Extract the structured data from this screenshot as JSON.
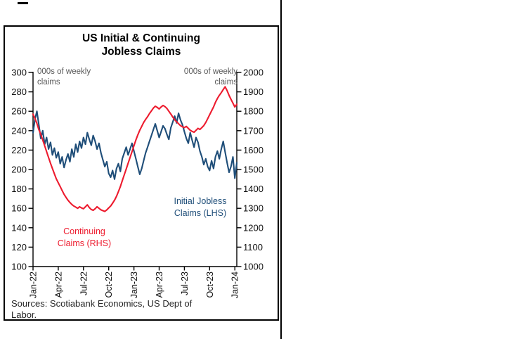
{
  "chart": {
    "title_line1": "US Initial & Continuing",
    "title_line2": "Jobless Claims",
    "left_axis_note_line1": "000s of weekly",
    "left_axis_note_line2": "claims",
    "right_axis_note_line1": "000s of weekly",
    "right_axis_note_line2": "claims",
    "series_label_initial_line1": "Initial Jobless",
    "series_label_initial_line2": "Claims (LHS)",
    "series_label_continuing_line1": "Continuing",
    "series_label_continuing_line2": "Claims (RHS)",
    "source_line1": "Sources: Scotiabank Economics, US Dept of",
    "source_line2": "Labor."
  },
  "chart_data": {
    "type": "line",
    "title": "US Initial & Continuing Jobless Claims",
    "frequency": "weekly",
    "n_points": 106,
    "x_tick_labels": [
      "Jan-22",
      "Apr-22",
      "Jul-22",
      "Oct-22",
      "Jan-23",
      "Apr-23",
      "Jul-23",
      "Oct-23",
      "Jan-24"
    ],
    "x_tick_indices": [
      0,
      13,
      26,
      39,
      52,
      65,
      78,
      91,
      104
    ],
    "left_axis": {
      "min": 100,
      "max": 300,
      "step": 20,
      "label": "000s of weekly claims",
      "ticks": [
        300,
        280,
        260,
        240,
        220,
        200,
        180,
        160,
        140,
        120,
        100
      ]
    },
    "right_axis": {
      "min": 1000,
      "max": 2000,
      "step": 100,
      "label": "000s of weekly claims",
      "ticks": [
        2000,
        1900,
        1800,
        1700,
        1600,
        1500,
        1400,
        1300,
        1200,
        1100,
        1000
      ]
    },
    "grid": false,
    "legend_position": "inside-annotations",
    "series": [
      {
        "name": "Initial Jobless Claims (LHS)",
        "axis": "left",
        "color": "#1f4e79",
        "values": [
          238,
          252,
          260,
          246,
          232,
          240,
          226,
          233,
          221,
          228,
          215,
          222,
          212,
          218,
          206,
          213,
          202,
          210,
          216,
          208,
          221,
          213,
          226,
          218,
          229,
          222,
          233,
          226,
          238,
          231,
          225,
          235,
          229,
          221,
          227,
          217,
          210,
          203,
          208,
          196,
          192,
          199,
          190,
          201,
          206,
          198,
          211,
          217,
          223,
          215,
          221,
          227,
          219,
          211,
          203,
          195,
          201,
          209,
          217,
          223,
          229,
          235,
          241,
          247,
          240,
          233,
          239,
          245,
          242,
          236,
          231,
          243,
          249,
          255,
          248,
          258,
          251,
          246,
          239,
          232,
          227,
          238,
          230,
          223,
          233,
          228,
          219,
          213,
          205,
          211,
          203,
          199,
          209,
          201,
          213,
          219,
          211,
          221,
          229,
          218,
          207,
          197,
          203,
          213,
          191,
          207
        ]
      },
      {
        "name": "Continuing Claims (RHS)",
        "axis": "right",
        "color": "#ed1b2e",
        "values": [
          1785,
          1762,
          1738,
          1705,
          1682,
          1652,
          1622,
          1592,
          1562,
          1532,
          1505,
          1478,
          1452,
          1432,
          1412,
          1392,
          1372,
          1356,
          1342,
          1330,
          1320,
          1312,
          1306,
          1300,
          1308,
          1302,
          1298,
          1308,
          1318,
          1304,
          1294,
          1290,
          1298,
          1308,
          1300,
          1292,
          1288,
          1284,
          1292,
          1302,
          1312,
          1326,
          1342,
          1362,
          1386,
          1412,
          1442,
          1472,
          1502,
          1532,
          1562,
          1592,
          1622,
          1652,
          1678,
          1702,
          1722,
          1742,
          1758,
          1772,
          1788,
          1802,
          1816,
          1826,
          1820,
          1812,
          1822,
          1830,
          1824,
          1814,
          1800,
          1786,
          1770,
          1756,
          1746,
          1736,
          1726,
          1720,
          1716,
          1722,
          1712,
          1702,
          1696,
          1692,
          1702,
          1712,
          1706,
          1716,
          1726,
          1742,
          1762,
          1782,
          1802,
          1822,
          1846,
          1866,
          1882,
          1896,
          1912,
          1926,
          1906,
          1882,
          1862,
          1842,
          1822,
          1836
        ]
      }
    ],
    "source": "Sources: Scotiabank Economics, US Dept of Labor."
  }
}
